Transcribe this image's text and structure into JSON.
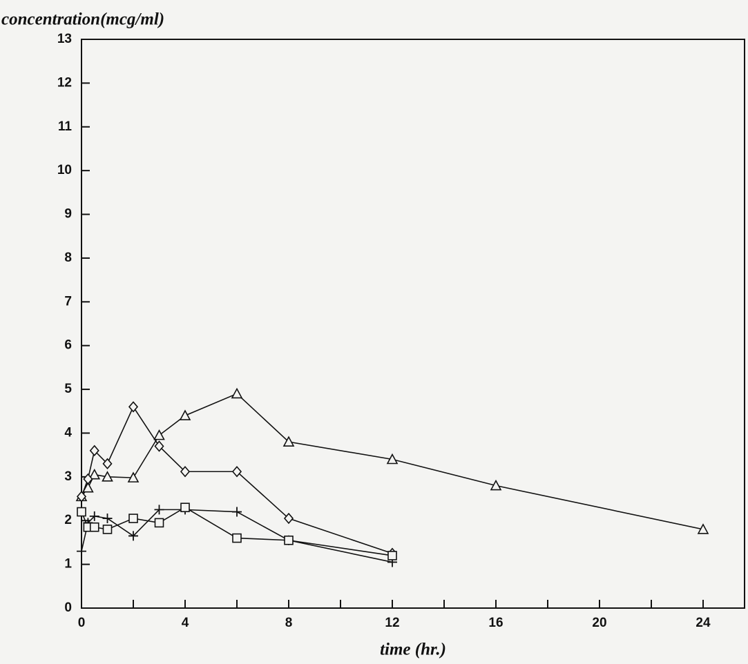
{
  "chart_data": {
    "type": "line",
    "y_label": "concentration(mcg/ml)",
    "x_label": "time (hr.)",
    "xlim": [
      0,
      25.6
    ],
    "ylim": [
      0,
      13
    ],
    "xticks": [
      0,
      4,
      8,
      12,
      16,
      20,
      24
    ],
    "minor_xticks": [
      2,
      6,
      10,
      14,
      18,
      22
    ],
    "yticks": [
      0,
      1,
      2,
      3,
      4,
      5,
      6,
      7,
      8,
      9,
      10,
      11,
      12,
      13
    ],
    "series": [
      {
        "marker": "triangle",
        "color": "#111",
        "x": [
          0,
          0.25,
          0.5,
          1,
          2,
          3,
          4,
          6,
          8,
          12,
          16,
          24
        ],
        "values": [
          2.55,
          2.75,
          3.05,
          3.0,
          2.98,
          3.95,
          4.4,
          4.9,
          3.8,
          3.4,
          2.8,
          1.8
        ]
      },
      {
        "marker": "diamond",
        "color": "#111",
        "x": [
          0,
          0.25,
          0.5,
          1,
          2,
          3,
          4,
          6,
          8,
          12
        ],
        "values": [
          2.55,
          2.95,
          3.6,
          3.3,
          4.6,
          3.7,
          3.12,
          3.12,
          2.05,
          1.25
        ]
      },
      {
        "marker": "plus",
        "color": "#111",
        "x": [
          0,
          0.25,
          0.5,
          1,
          2,
          3,
          4,
          6,
          8,
          12
        ],
        "values": [
          1.3,
          1.95,
          2.1,
          2.05,
          1.65,
          2.25,
          2.25,
          2.2,
          1.55,
          1.05
        ]
      },
      {
        "marker": "square",
        "color": "#111",
        "x": [
          0,
          0.25,
          0.5,
          1,
          2,
          3,
          4,
          6,
          8,
          12
        ],
        "values": [
          2.2,
          1.85,
          1.85,
          1.8,
          2.05,
          1.95,
          2.3,
          1.6,
          1.55,
          1.2
        ]
      }
    ]
  }
}
